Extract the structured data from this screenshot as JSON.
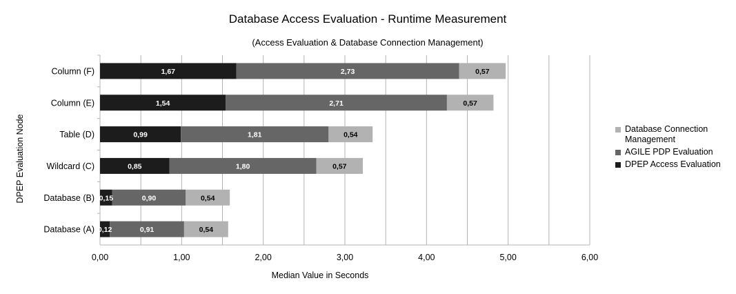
{
  "chart_data": {
    "type": "bar",
    "orientation": "horizontal",
    "stacked": true,
    "title": "Database Access Evaluation - Runtime Measurement",
    "subtitle": "(Access Evaluation & Database Connection Management)",
    "xlabel": "Median Value in Seconds",
    "ylabel": "DPEP Evaluation Node",
    "xlim": [
      0,
      6
    ],
    "x_ticks": [
      "0,00",
      "1,00",
      "2,00",
      "3,00",
      "4,00",
      "5,00",
      "6,00"
    ],
    "grid": true,
    "legend_position": "right",
    "categories": [
      "Column (F)",
      "Column (E)",
      "Table (D)",
      "Wildcard (C)",
      "Database (B)",
      "Database (A)"
    ],
    "series": [
      {
        "name": "DPEP Access Evaluation",
        "color": "#1c1c1c",
        "label_color": "#ffffff",
        "values": [
          1.67,
          1.54,
          0.99,
          0.85,
          0.15,
          0.12
        ],
        "labels": [
          "1,67",
          "1,54",
          "0,99",
          "0,85",
          "0,15",
          "0,12"
        ]
      },
      {
        "name": "AGILE PDP Evaluation",
        "color": "#666666",
        "label_color": "#ffffff",
        "values": [
          2.73,
          2.71,
          1.81,
          1.8,
          0.9,
          0.91
        ],
        "labels": [
          "2,73",
          "2,71",
          "1,81",
          "1,80",
          "0,90",
          "0,91"
        ]
      },
      {
        "name": "Database Connection Management",
        "color": "#b2b2b2",
        "label_color": "#000000",
        "values": [
          0.57,
          0.57,
          0.54,
          0.57,
          0.54,
          0.54
        ],
        "labels": [
          "0,57",
          "0,57",
          "0,54",
          "0,57",
          "0,54",
          "0,54"
        ]
      }
    ],
    "legend_order": [
      2,
      1,
      0
    ]
  }
}
